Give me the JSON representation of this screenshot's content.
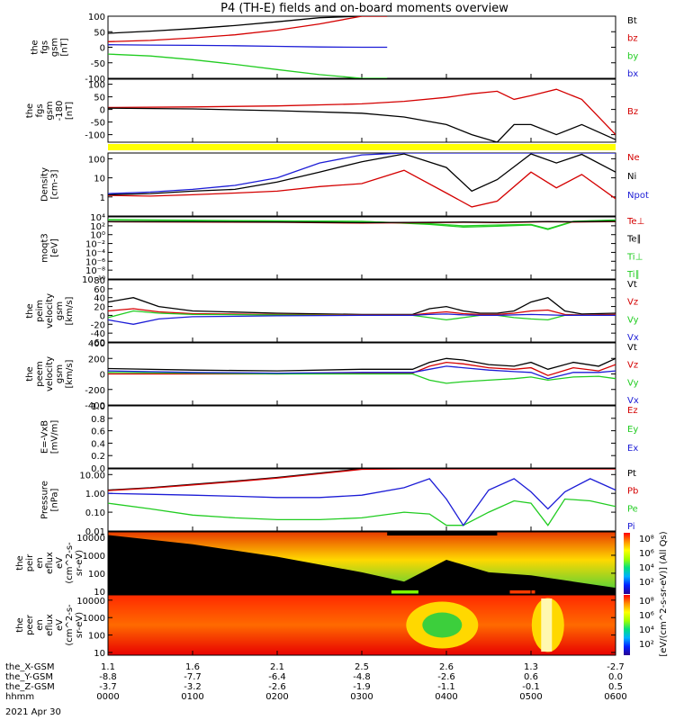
{
  "title": "P4 (TH-E) fields and on-board moments overview",
  "date_label": "2021 Apr 30",
  "colors": {
    "black": "#000000",
    "red": "#d40000",
    "green": "#21cc21",
    "blue": "#1c1cd6",
    "yellow": "#ffff00"
  },
  "bottom_axis": {
    "rows": [
      {
        "name": "the_X-GSM",
        "values": [
          "1.1",
          "1.6",
          "2.1",
          "2.5",
          "2.6",
          "1.3",
          "-2.7"
        ]
      },
      {
        "name": "the_Y-GSM",
        "values": [
          "-8.8",
          "-7.7",
          "-6.4",
          "-4.8",
          "-2.6",
          "0.6",
          "0.0"
        ]
      },
      {
        "name": "the_Z-GSM",
        "values": [
          "-3.7",
          "-3.2",
          "-2.6",
          "-1.9",
          "-1.1",
          "-0.1",
          "0.5"
        ]
      },
      {
        "name": "hhmm",
        "values": [
          "0000",
          "0100",
          "0200",
          "0300",
          "0400",
          "0500",
          "0600"
        ]
      }
    ]
  },
  "chart_data": [
    {
      "type": "line",
      "panel": "fgs",
      "ylabel": [
        "the",
        "fgs",
        "gsm",
        "[nT]"
      ],
      "ylim": [
        -100,
        100
      ],
      "yticks": [
        "100",
        "50",
        "0",
        "-50",
        "-100"
      ],
      "tick_values": [
        100,
        50,
        0,
        -50,
        -100
      ],
      "legend": [
        "Bt",
        "bz",
        "by",
        "bx"
      ],
      "x_hours": [
        0,
        0.5,
        1,
        1.5,
        2,
        2.5,
        3,
        3.3
      ],
      "series": [
        {
          "name": "Bt",
          "values": [
            45,
            52,
            60,
            70,
            82,
            95,
            100,
            100
          ]
        },
        {
          "name": "bz",
          "values": [
            18,
            22,
            30,
            40,
            55,
            75,
            100,
            100
          ]
        },
        {
          "name": "by",
          "values": [
            -22,
            -28,
            -40,
            -55,
            -72,
            -88,
            -100,
            -100
          ]
        },
        {
          "name": "bx",
          "values": [
            8,
            7,
            6,
            5,
            3,
            1,
            0,
            0
          ]
        }
      ]
    },
    {
      "type": "line",
      "panel": "fgl",
      "ylabel": [
        "the",
        "fgs",
        "gsm",
        "-180",
        "[nT]"
      ],
      "ylim": [
        -130,
        120
      ],
      "yticks": [
        "100",
        "50",
        "0",
        "-50",
        "-100"
      ],
      "tick_values": [
        100,
        50,
        0,
        -50,
        -100
      ],
      "legend": [
        "Bz"
      ],
      "x_hours": [
        0,
        1,
        2,
        3,
        3.5,
        4,
        4.3,
        4.6,
        4.8,
        5,
        5.3,
        5.6,
        6
      ],
      "series": [
        {
          "name": "Bz",
          "values": [
            8,
            10,
            14,
            22,
            32,
            48,
            62,
            72,
            40,
            55,
            80,
            40,
            -100
          ]
        },
        {
          "name": "Bt",
          "values": [
            5,
            2,
            -5,
            -15,
            -30,
            -60,
            -100,
            -130,
            -60,
            -60,
            -100,
            -60,
            -120
          ]
        }
      ]
    },
    {
      "type": "line",
      "panel": "density",
      "ylabel": [
        "Density",
        "[cm-3]"
      ],
      "ylog": true,
      "ylim": [
        0.1,
        200
      ],
      "yticks": [
        "100",
        "10",
        "1"
      ],
      "tick_values": [
        100,
        10,
        1
      ],
      "legend": [
        "Ne",
        "Ni",
        "Npot"
      ],
      "x_hours": [
        0,
        0.5,
        1,
        1.5,
        2,
        2.5,
        3,
        3.5,
        4,
        4.3,
        4.6,
        5,
        5.3,
        5.6,
        6
      ],
      "series": [
        {
          "name": "Ne",
          "values": [
            1.2,
            1.1,
            1.3,
            1.6,
            2.0,
            3.5,
            5,
            25,
            1.6,
            0.3,
            0.6,
            20,
            3,
            15,
            0.8
          ]
        },
        {
          "name": "Ni",
          "values": [
            1.3,
            1.5,
            2.0,
            2.5,
            6,
            20,
            70,
            180,
            35,
            2,
            8,
            180,
            60,
            170,
            20
          ]
        },
        {
          "name": "Npot",
          "values": [
            1.5,
            1.8,
            2.5,
            4,
            10,
            60,
            160,
            200,
            200,
            200,
            200,
            200,
            200,
            200,
            200
          ]
        }
      ]
    },
    {
      "type": "line",
      "panel": "temperature",
      "ylabel": [
        "moqt3",
        "[eV]"
      ],
      "ylog": true,
      "ylim": [
        1e-10,
        10000.0
      ],
      "yticks": [
        "10⁴",
        "10²",
        "10⁰",
        "10⁻²",
        "10⁻⁴",
        "10⁻⁶",
        "10⁻⁸",
        "10⁻¹⁰"
      ],
      "tick_values": [
        10000.0,
        100.0,
        1,
        0.01,
        0.0001,
        1e-06,
        1e-08,
        1e-10
      ],
      "legend": [
        "Te⊥",
        "Te∥",
        "Ti⊥",
        "Ti∥"
      ],
      "x_hours": [
        0,
        1,
        2,
        3,
        3.8,
        4.2,
        4.6,
        5,
        5.2,
        5.5,
        6
      ],
      "series": [
        {
          "name": "Ti⊥",
          "values": [
            2000,
            1500,
            1200,
            900,
            300,
            100,
            150,
            200,
            20,
            1000,
            2000
          ]
        },
        {
          "name": "Ti∥",
          "values": [
            2500,
            1800,
            1300,
            1000,
            200,
            50,
            80,
            150,
            15,
            900,
            1800
          ]
        },
        {
          "name": "Te⊥",
          "values": [
            800,
            700,
            600,
            400,
            500,
            600,
            500,
            700,
            800,
            700,
            900
          ]
        },
        {
          "name": "Te∥",
          "values": [
            900,
            800,
            700,
            500,
            600,
            700,
            600,
            800,
            900,
            800,
            1000
          ]
        }
      ]
    },
    {
      "type": "line",
      "panel": "peim_velocity",
      "ylabel": [
        "the",
        "peim",
        "velocity",
        "gsm",
        "[km/s]"
      ],
      "ylim": [
        -60,
        80
      ],
      "yticks": [
        "80",
        "60",
        "40",
        "20",
        "0",
        "-20",
        "-40",
        "-60"
      ],
      "tick_values": [
        80,
        60,
        40,
        20,
        0,
        -20,
        -40,
        -60
      ],
      "legend": [
        "Vt",
        "Vz",
        "Vy",
        "Vx"
      ],
      "x_hours": [
        0,
        0.3,
        0.6,
        1,
        2,
        3,
        3.6,
        3.8,
        4.0,
        4.2,
        4.4,
        4.6,
        4.8,
        5.0,
        5.2,
        5.4,
        5.6,
        6
      ],
      "series": [
        {
          "name": "Vt",
          "values": [
            30,
            40,
            20,
            10,
            5,
            2,
            2,
            15,
            20,
            10,
            5,
            5,
            10,
            30,
            40,
            10,
            3,
            5
          ]
        },
        {
          "name": "Vz",
          "values": [
            10,
            15,
            8,
            4,
            2,
            1,
            1,
            5,
            8,
            4,
            2,
            2,
            5,
            10,
            12,
            2,
            1,
            2
          ]
        },
        {
          "name": "Vy",
          "values": [
            -5,
            10,
            5,
            2,
            1,
            0,
            0,
            -5,
            -10,
            -5,
            0,
            0,
            -5,
            -8,
            -10,
            0,
            0,
            0
          ]
        },
        {
          "name": "Vx",
          "values": [
            -10,
            -20,
            -8,
            -3,
            -1,
            0,
            0,
            2,
            3,
            1,
            0,
            0,
            1,
            2,
            1,
            0,
            0,
            0
          ]
        }
      ]
    },
    {
      "type": "line",
      "panel": "peem_velocity",
      "ylabel": [
        "the",
        "peem",
        "velocity",
        "gsm",
        "[km/s]"
      ],
      "ylim": [
        -400,
        400
      ],
      "yticks": [
        "400",
        "200",
        "0",
        "-200",
        "-400"
      ],
      "tick_values": [
        400,
        200,
        0,
        -200,
        -400
      ],
      "legend": [
        "Vt",
        "Vz",
        "Vy",
        "Vx"
      ],
      "x_hours": [
        0,
        1,
        2,
        3,
        3.6,
        3.8,
        4.0,
        4.2,
        4.5,
        4.8,
        5.0,
        5.2,
        5.5,
        5.8,
        6
      ],
      "series": [
        {
          "name": "Vt",
          "values": [
            70,
            50,
            40,
            60,
            60,
            150,
            200,
            180,
            120,
            100,
            150,
            60,
            150,
            100,
            200
          ]
        },
        {
          "name": "Vz",
          "values": [
            0,
            0,
            0,
            10,
            10,
            100,
            150,
            130,
            80,
            60,
            80,
            -20,
            80,
            40,
            120
          ]
        },
        {
          "name": "Vy",
          "values": [
            20,
            10,
            0,
            0,
            0,
            -80,
            -120,
            -100,
            -80,
            -60,
            -40,
            -80,
            -40,
            -30,
            -60
          ]
        },
        {
          "name": "Vx",
          "values": [
            40,
            20,
            10,
            20,
            20,
            60,
            100,
            80,
            50,
            30,
            20,
            -60,
            20,
            20,
            40
          ]
        }
      ]
    },
    {
      "type": "line",
      "panel": "efield",
      "ylabel": [
        "E=-VxB",
        "[mV/m]"
      ],
      "ylim": [
        0,
        1
      ],
      "yticks": [
        "1.0",
        "0.8",
        "0.6",
        "0.4",
        "0.2",
        "0.0"
      ],
      "tick_values": [
        1,
        0.8,
        0.6,
        0.4,
        0.2,
        0
      ],
      "legend": [
        "Ez",
        "Ey",
        "Ex"
      ],
      "series": []
    },
    {
      "type": "line",
      "panel": "pressure",
      "ylabel": [
        "Pressure",
        "[nPa]"
      ],
      "ylog": true,
      "ylim": [
        0.01,
        20
      ],
      "yticks": [
        "10.00",
        "1.00",
        "0.10",
        "0.01"
      ],
      "tick_values": [
        10,
        1,
        0.1,
        0.01
      ],
      "legend": [
        "Pt",
        "Pb",
        "Pe",
        "Pi"
      ],
      "x_hours": [
        0,
        0.5,
        1,
        1.5,
        2,
        2.5,
        3,
        3.5,
        3.8,
        4.0,
        4.2,
        4.5,
        4.8,
        5.0,
        5.2,
        5.4,
        5.7,
        6
      ],
      "series": [
        {
          "name": "Pt",
          "values": [
            1.5,
            2,
            3,
            4.5,
            7,
            12,
            20,
            20,
            20,
            20,
            20,
            20,
            20,
            20,
            20,
            20,
            20,
            20
          ]
        },
        {
          "name": "Pb",
          "values": [
            1.4,
            1.9,
            2.8,
            4.2,
            6.5,
            11,
            19,
            20,
            20,
            20,
            20,
            20,
            20,
            20,
            20,
            20,
            20,
            20
          ]
        },
        {
          "name": "Pe",
          "values": [
            0.3,
            0.15,
            0.07,
            0.05,
            0.04,
            0.04,
            0.05,
            0.1,
            0.08,
            0.02,
            0.02,
            0.1,
            0.4,
            0.3,
            0.02,
            0.5,
            0.4,
            0.2
          ]
        },
        {
          "name": "Pi",
          "values": [
            1.0,
            0.9,
            0.8,
            0.7,
            0.6,
            0.6,
            0.8,
            2,
            6,
            0.5,
            0.02,
            1.5,
            6,
            1.2,
            0.15,
            1.2,
            6,
            1.5
          ]
        }
      ]
    },
    {
      "type": "heatmap",
      "panel": "peir_en_eflux",
      "ylabel": [
        "the",
        "peir",
        "en",
        "eflux",
        "eV",
        "(cm^2-s-",
        "sr-eV)"
      ],
      "ylog": true,
      "ylim": [
        7,
        20000
      ],
      "yticks": [
        "10000",
        "1000",
        "100",
        "10"
      ],
      "tick_values": [
        10000,
        1000,
        100,
        10
      ]
    },
    {
      "type": "heatmap",
      "panel": "peer_en_eflux",
      "ylabel": [
        "the",
        "peer",
        "en",
        "eflux",
        "eV",
        "(cm^2-s-",
        "sr-eV)"
      ],
      "ylog": true,
      "ylim": [
        7,
        20000
      ],
      "yticks": [
        "10000",
        "1000",
        "100",
        "10"
      ],
      "tick_values": [
        10000,
        1000,
        100,
        10
      ]
    }
  ],
  "colorbar": {
    "labels": [
      "10⁸",
      "10⁶",
      "10⁴",
      "10²"
    ],
    "title": "[eV/(cm^2-s-sr-eV)] (All Qs)"
  }
}
